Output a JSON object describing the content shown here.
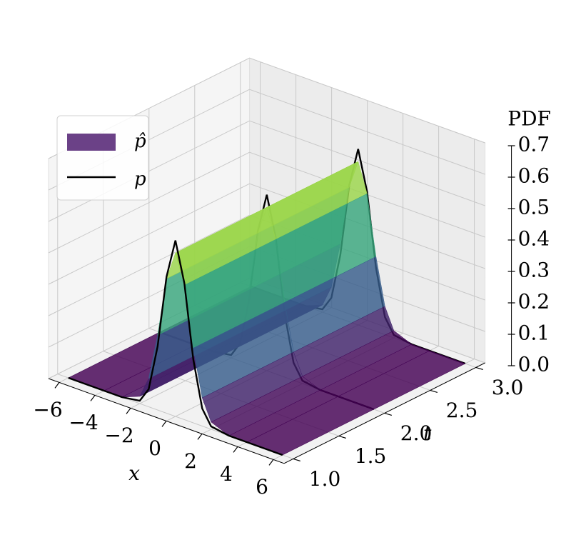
{
  "chart_data": {
    "type": "surface3d",
    "xlabel": "x",
    "ylabel": "t",
    "zlabel": "PDF",
    "xlim": [
      -6.6,
      6.6
    ],
    "tlim": [
      0.9,
      3.1
    ],
    "zlim": [
      0,
      0.7
    ],
    "xticks": [
      {
        "value": -6,
        "label": "−6"
      },
      {
        "value": -4,
        "label": "−4"
      },
      {
        "value": -2,
        "label": "−2"
      },
      0,
      2,
      4,
      6
    ],
    "tticks": [
      {
        "value": 1,
        "label": "1.0"
      },
      1.5,
      {
        "value": 2,
        "label": "2.0"
      },
      2.5,
      {
        "value": 3,
        "label": "3.0"
      }
    ],
    "zticks": [
      {
        "value": 0,
        "label": "0.0"
      },
      0.1,
      0.2,
      0.3,
      0.4,
      0.5,
      0.6,
      0.7
    ],
    "grid": true,
    "legend": "upper left",
    "x": [
      -6,
      -4,
      -3,
      -2,
      -1.5,
      -1,
      -0.5,
      0,
      0.5,
      1,
      1.5,
      2,
      3,
      4,
      6
    ],
    "surface": {
      "name": "p̂",
      "color": "#5b2c7a",
      "t": [
        1,
        2,
        3
      ],
      "z": [
        [
          0,
          0,
          0,
          0.023,
          0.09,
          0.238,
          0.428,
          0.52,
          0.428,
          0.238,
          0.09,
          0.023,
          0,
          0,
          0
        ],
        [
          0,
          0,
          0,
          0.023,
          0.09,
          0.238,
          0.428,
          0.52,
          0.428,
          0.238,
          0.09,
          0.023,
          0,
          0,
          0
        ],
        [
          0,
          0,
          0,
          0.023,
          0.09,
          0.238,
          0.428,
          0.52,
          0.428,
          0.238,
          0.09,
          0.023,
          0,
          0,
          0
        ]
      ]
    },
    "series": [
      {
        "name": "p",
        "color": "#000000",
        "t": 3,
        "values": [
          0,
          0,
          0,
          0.009,
          0.056,
          0.202,
          0.434,
          0.56,
          0.434,
          0.202,
          0.056,
          0.009,
          0,
          0,
          0
        ]
      },
      {
        "name": "p",
        "color": "#000000",
        "t": 2,
        "values": [
          0,
          0,
          0,
          0.009,
          0.056,
          0.202,
          0.434,
          0.56,
          0.434,
          0.202,
          0.056,
          0.009,
          0,
          0,
          0
        ]
      },
      {
        "name": "p",
        "color": "#000000",
        "t": 1,
        "values": [
          0,
          0,
          0,
          0.009,
          0.056,
          0.202,
          0.434,
          0.56,
          0.434,
          0.202,
          0.056,
          0.009,
          0,
          0,
          0
        ]
      }
    ]
  }
}
